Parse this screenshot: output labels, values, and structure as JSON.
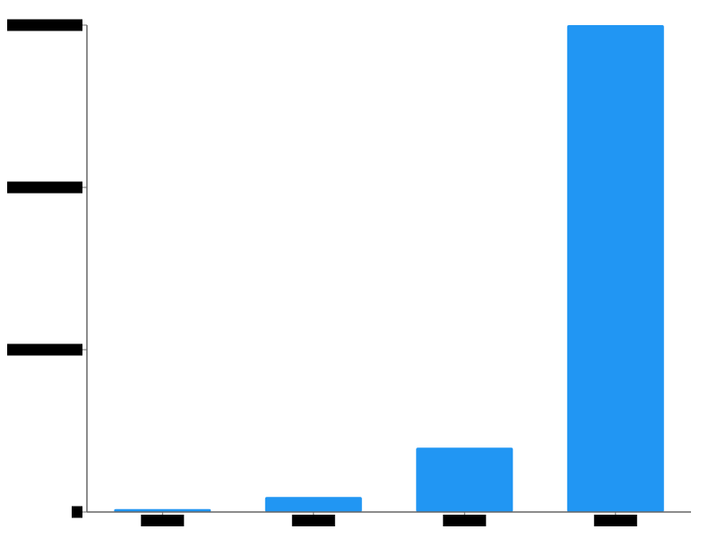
{
  "chart_data": {
    "type": "bar",
    "title": "",
    "xlabel": "",
    "ylabel": "",
    "categories": [
      "",
      "",
      "",
      ""
    ],
    "values": [
      0.6,
      3.1,
      13.2,
      100
    ],
    "ylim": [
      0,
      100
    ],
    "y_ticks": [
      0,
      33.33,
      66.67,
      100
    ],
    "y_tick_labels": [
      "",
      "",
      "",
      ""
    ],
    "labels_redacted": true,
    "bar_color": "#2196F3",
    "axis_color": "#666666",
    "redaction_color": "#000000",
    "grid": false,
    "legend": "none"
  }
}
